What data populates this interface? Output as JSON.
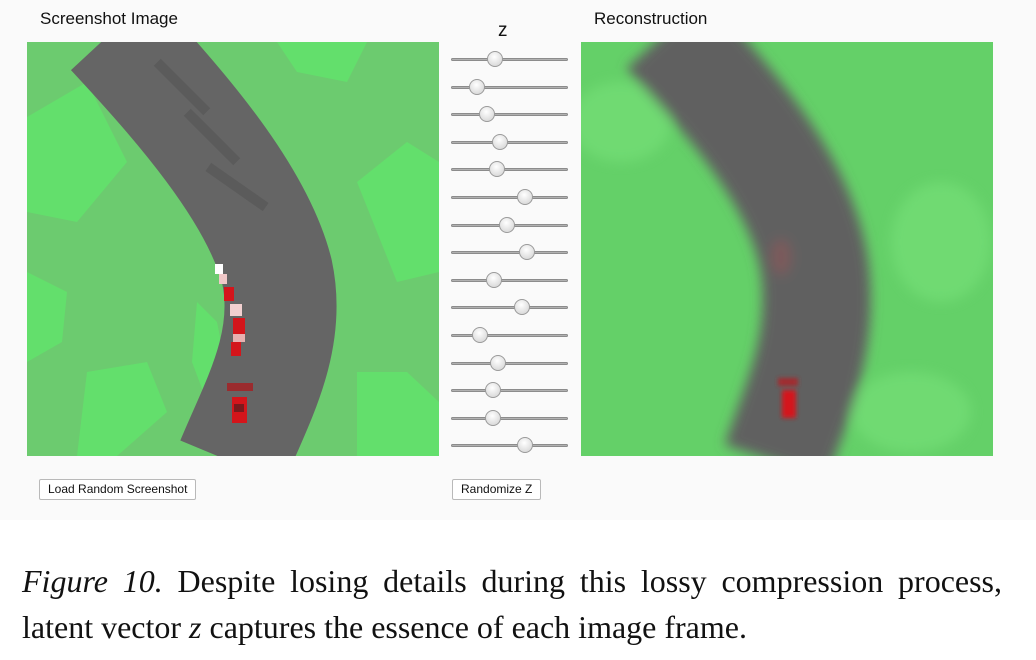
{
  "app": {
    "left_title": "Screenshot Image",
    "z_title": "z",
    "right_title": "Reconstruction",
    "load_button": "Load Random Screenshot",
    "randomize_button": "Randomize Z"
  },
  "z_sliders": [
    0.38,
    0.22,
    0.31,
    0.42,
    0.39,
    0.63,
    0.48,
    0.65,
    0.37,
    0.61,
    0.25,
    0.4,
    0.36,
    0.36,
    0.63
  ],
  "caption": {
    "label": "Figure 10.",
    "text_before_z": " Despite losing details during this lossy compression process, latent vector ",
    "z": "z",
    "text_after_z": " captures the essence of each image frame."
  },
  "colors": {
    "grass": "#6ccc6e",
    "grass_light": "#5fe36a",
    "road": "#666666",
    "car": "#d4151b",
    "recon_grass": "#62d166",
    "recon_road": "#5f5f5f"
  }
}
